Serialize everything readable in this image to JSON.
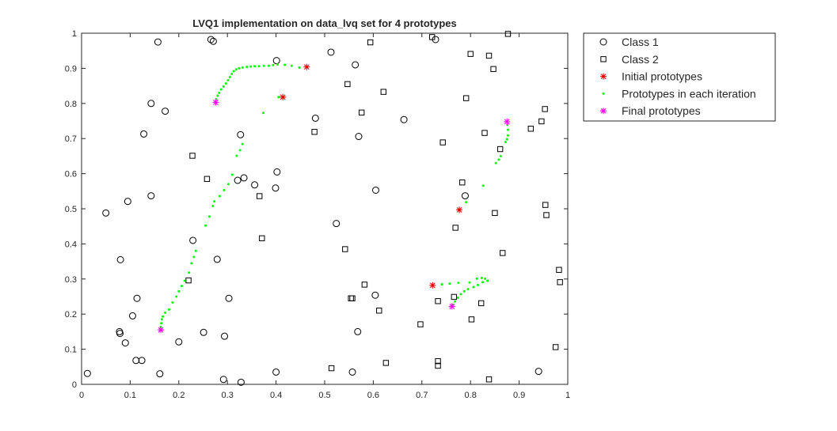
{
  "chart_data": {
    "type": "scatter",
    "title": "LVQ1 implementation on data_lvq set for 4 prototypes",
    "xlabel": "",
    "ylabel": "",
    "xlim": [
      0,
      1
    ],
    "ylim": [
      0,
      1
    ],
    "xticks": [
      0,
      0.1,
      0.2,
      0.3,
      0.4,
      0.5,
      0.6,
      0.7,
      0.8,
      0.9,
      1
    ],
    "yticks": [
      0,
      0.1,
      0.2,
      0.3,
      0.4,
      0.5,
      0.6,
      0.7,
      0.8,
      0.9,
      1
    ],
    "xtick_labels": [
      "0",
      "0.1",
      "0.2",
      "0.3",
      "0.4",
      "0.5",
      "0.6",
      "0.7",
      "0.8",
      "0.9",
      "1"
    ],
    "ytick_labels": [
      "0",
      "0.1",
      "0.2",
      "0.3",
      "0.4",
      "0.5",
      "0.6",
      "0.7",
      "0.8",
      "0.9",
      "1"
    ],
    "grid": false,
    "legend_position": "outside top-right",
    "series": [
      {
        "name": "Class 1",
        "marker": "circle",
        "color": "#000000",
        "points": [
          [
            0.157,
            0.975
          ],
          [
            0.266,
            0.982
          ],
          [
            0.271,
            0.977
          ],
          [
            0.401,
            0.922
          ],
          [
            0.513,
            0.946
          ],
          [
            0.563,
            0.91
          ],
          [
            0.728,
            0.982
          ],
          [
            0.143,
            0.8
          ],
          [
            0.172,
            0.778
          ],
          [
            0.481,
            0.758
          ],
          [
            0.663,
            0.754
          ],
          [
            0.327,
            0.711
          ],
          [
            0.128,
            0.713
          ],
          [
            0.57,
            0.706
          ],
          [
            0.334,
            0.588
          ],
          [
            0.321,
            0.581
          ],
          [
            0.356,
            0.568
          ],
          [
            0.402,
            0.605
          ],
          [
            0.399,
            0.559
          ],
          [
            0.605,
            0.553
          ],
          [
            0.143,
            0.537
          ],
          [
            0.095,
            0.521
          ],
          [
            0.05,
            0.488
          ],
          [
            0.789,
            0.537
          ],
          [
            0.524,
            0.458
          ],
          [
            0.229,
            0.41
          ],
          [
            0.08,
            0.355
          ],
          [
            0.279,
            0.356
          ],
          [
            0.114,
            0.245
          ],
          [
            0.303,
            0.245
          ],
          [
            0.604,
            0.254
          ],
          [
            0.105,
            0.195
          ],
          [
            0.078,
            0.15
          ],
          [
            0.079,
            0.145
          ],
          [
            0.251,
            0.148
          ],
          [
            0.294,
            0.137
          ],
          [
            0.568,
            0.15
          ],
          [
            0.09,
            0.118
          ],
          [
            0.2,
            0.121
          ],
          [
            0.112,
            0.068
          ],
          [
            0.124,
            0.068
          ],
          [
            0.012,
            0.031
          ],
          [
            0.161,
            0.03
          ],
          [
            0.292,
            0.014
          ],
          [
            0.328,
            0.006
          ],
          [
            0.4,
            0.035
          ],
          [
            0.557,
            0.035
          ],
          [
            0.94,
            0.037
          ]
        ]
      },
      {
        "name": "Class 2",
        "marker": "square",
        "color": "#000000",
        "points": [
          [
            0.877,
            0.998
          ],
          [
            0.721,
            0.989
          ],
          [
            0.594,
            0.974
          ],
          [
            0.8,
            0.941
          ],
          [
            0.838,
            0.936
          ],
          [
            0.847,
            0.898
          ],
          [
            0.547,
            0.855
          ],
          [
            0.621,
            0.833
          ],
          [
            0.791,
            0.815
          ],
          [
            0.953,
            0.784
          ],
          [
            0.576,
            0.774
          ],
          [
            0.946,
            0.749
          ],
          [
            0.924,
            0.728
          ],
          [
            0.479,
            0.719
          ],
          [
            0.829,
            0.716
          ],
          [
            0.743,
            0.689
          ],
          [
            0.861,
            0.67
          ],
          [
            0.228,
            0.651
          ],
          [
            0.258,
            0.585
          ],
          [
            0.783,
            0.575
          ],
          [
            0.366,
            0.536
          ],
          [
            0.954,
            0.511
          ],
          [
            0.956,
            0.482
          ],
          [
            0.85,
            0.488
          ],
          [
            0.769,
            0.446
          ],
          [
            0.371,
            0.416
          ],
          [
            0.542,
            0.385
          ],
          [
            0.866,
            0.374
          ],
          [
            0.982,
            0.326
          ],
          [
            0.984,
            0.291
          ],
          [
            0.22,
            0.296
          ],
          [
            0.582,
            0.284
          ],
          [
            0.557,
            0.245
          ],
          [
            0.554,
            0.245
          ],
          [
            0.766,
            0.249
          ],
          [
            0.733,
            0.237
          ],
          [
            0.822,
            0.231
          ],
          [
            0.612,
            0.21
          ],
          [
            0.802,
            0.185
          ],
          [
            0.697,
            0.171
          ],
          [
            0.975,
            0.106
          ],
          [
            0.733,
            0.066
          ],
          [
            0.733,
            0.053
          ],
          [
            0.626,
            0.061
          ],
          [
            0.514,
            0.046
          ],
          [
            0.838,
            0.014
          ]
        ]
      },
      {
        "name": "Initial prototypes",
        "marker": "asterisk",
        "color": "#e60000",
        "points": [
          [
            0.463,
            0.904
          ],
          [
            0.414,
            0.818
          ],
          [
            0.777,
            0.497
          ],
          [
            0.722,
            0.282
          ]
        ]
      },
      {
        "name": "Prototypes in each iteration",
        "marker": "dot",
        "color": "#00ff00",
        "points": [
          [
            0.463,
            0.904
          ],
          [
            0.448,
            0.902
          ],
          [
            0.432,
            0.907
          ],
          [
            0.418,
            0.91
          ],
          [
            0.403,
            0.911
          ],
          [
            0.394,
            0.909
          ],
          [
            0.385,
            0.907
          ],
          [
            0.375,
            0.907
          ],
          [
            0.365,
            0.906
          ],
          [
            0.356,
            0.906
          ],
          [
            0.348,
            0.905
          ],
          [
            0.34,
            0.904
          ],
          [
            0.331,
            0.902
          ],
          [
            0.324,
            0.9
          ],
          [
            0.318,
            0.897
          ],
          [
            0.313,
            0.892
          ],
          [
            0.309,
            0.884
          ],
          [
            0.305,
            0.875
          ],
          [
            0.301,
            0.866
          ],
          [
            0.297,
            0.857
          ],
          [
            0.292,
            0.848
          ],
          [
            0.287,
            0.84
          ],
          [
            0.283,
            0.83
          ],
          [
            0.28,
            0.822
          ],
          [
            0.277,
            0.812
          ],
          [
            0.275,
            0.804
          ],
          [
            0.414,
            0.818
          ],
          [
            0.405,
            0.818
          ],
          [
            0.374,
            0.773
          ],
          [
            0.331,
            0.684
          ],
          [
            0.326,
            0.667
          ],
          [
            0.319,
            0.651
          ],
          [
            0.31,
            0.597
          ],
          [
            0.302,
            0.57
          ],
          [
            0.293,
            0.553
          ],
          [
            0.284,
            0.536
          ],
          [
            0.273,
            0.521
          ],
          [
            0.27,
            0.508
          ],
          [
            0.263,
            0.478
          ],
          [
            0.255,
            0.452
          ],
          [
            0.235,
            0.38
          ],
          [
            0.231,
            0.363
          ],
          [
            0.226,
            0.345
          ],
          [
            0.221,
            0.318
          ],
          [
            0.212,
            0.295
          ],
          [
            0.206,
            0.28
          ],
          [
            0.2,
            0.265
          ],
          [
            0.195,
            0.25
          ],
          [
            0.187,
            0.233
          ],
          [
            0.18,
            0.213
          ],
          [
            0.172,
            0.204
          ],
          [
            0.167,
            0.193
          ],
          [
            0.165,
            0.185
          ],
          [
            0.164,
            0.174
          ],
          [
            0.163,
            0.163
          ],
          [
            0.163,
            0.155
          ],
          [
            0.777,
            0.497
          ],
          [
            0.791,
            0.519
          ],
          [
            0.826,
            0.566
          ],
          [
            0.852,
            0.63
          ],
          [
            0.858,
            0.64
          ],
          [
            0.862,
            0.65
          ],
          [
            0.872,
            0.69
          ],
          [
            0.875,
            0.698
          ],
          [
            0.877,
            0.709
          ],
          [
            0.877,
            0.725
          ],
          [
            0.876,
            0.739
          ],
          [
            0.875,
            0.748
          ],
          [
            0.722,
            0.282
          ],
          [
            0.741,
            0.285
          ],
          [
            0.757,
            0.287
          ],
          [
            0.775,
            0.289
          ],
          [
            0.798,
            0.29
          ],
          [
            0.813,
            0.301
          ],
          [
            0.823,
            0.303
          ],
          [
            0.83,
            0.301
          ],
          [
            0.835,
            0.295
          ],
          [
            0.825,
            0.291
          ],
          [
            0.815,
            0.283
          ],
          [
            0.806,
            0.277
          ],
          [
            0.795,
            0.271
          ],
          [
            0.787,
            0.265
          ],
          [
            0.78,
            0.257
          ],
          [
            0.774,
            0.247
          ],
          [
            0.768,
            0.236
          ],
          [
            0.763,
            0.227
          ],
          [
            0.762,
            0.222
          ]
        ]
      },
      {
        "name": "Final prototypes",
        "marker": "asterisk",
        "color": "#ff00ff",
        "points": [
          [
            0.276,
            0.803
          ],
          [
            0.163,
            0.155
          ],
          [
            0.875,
            0.748
          ],
          [
            0.762,
            0.222
          ]
        ]
      }
    ]
  }
}
